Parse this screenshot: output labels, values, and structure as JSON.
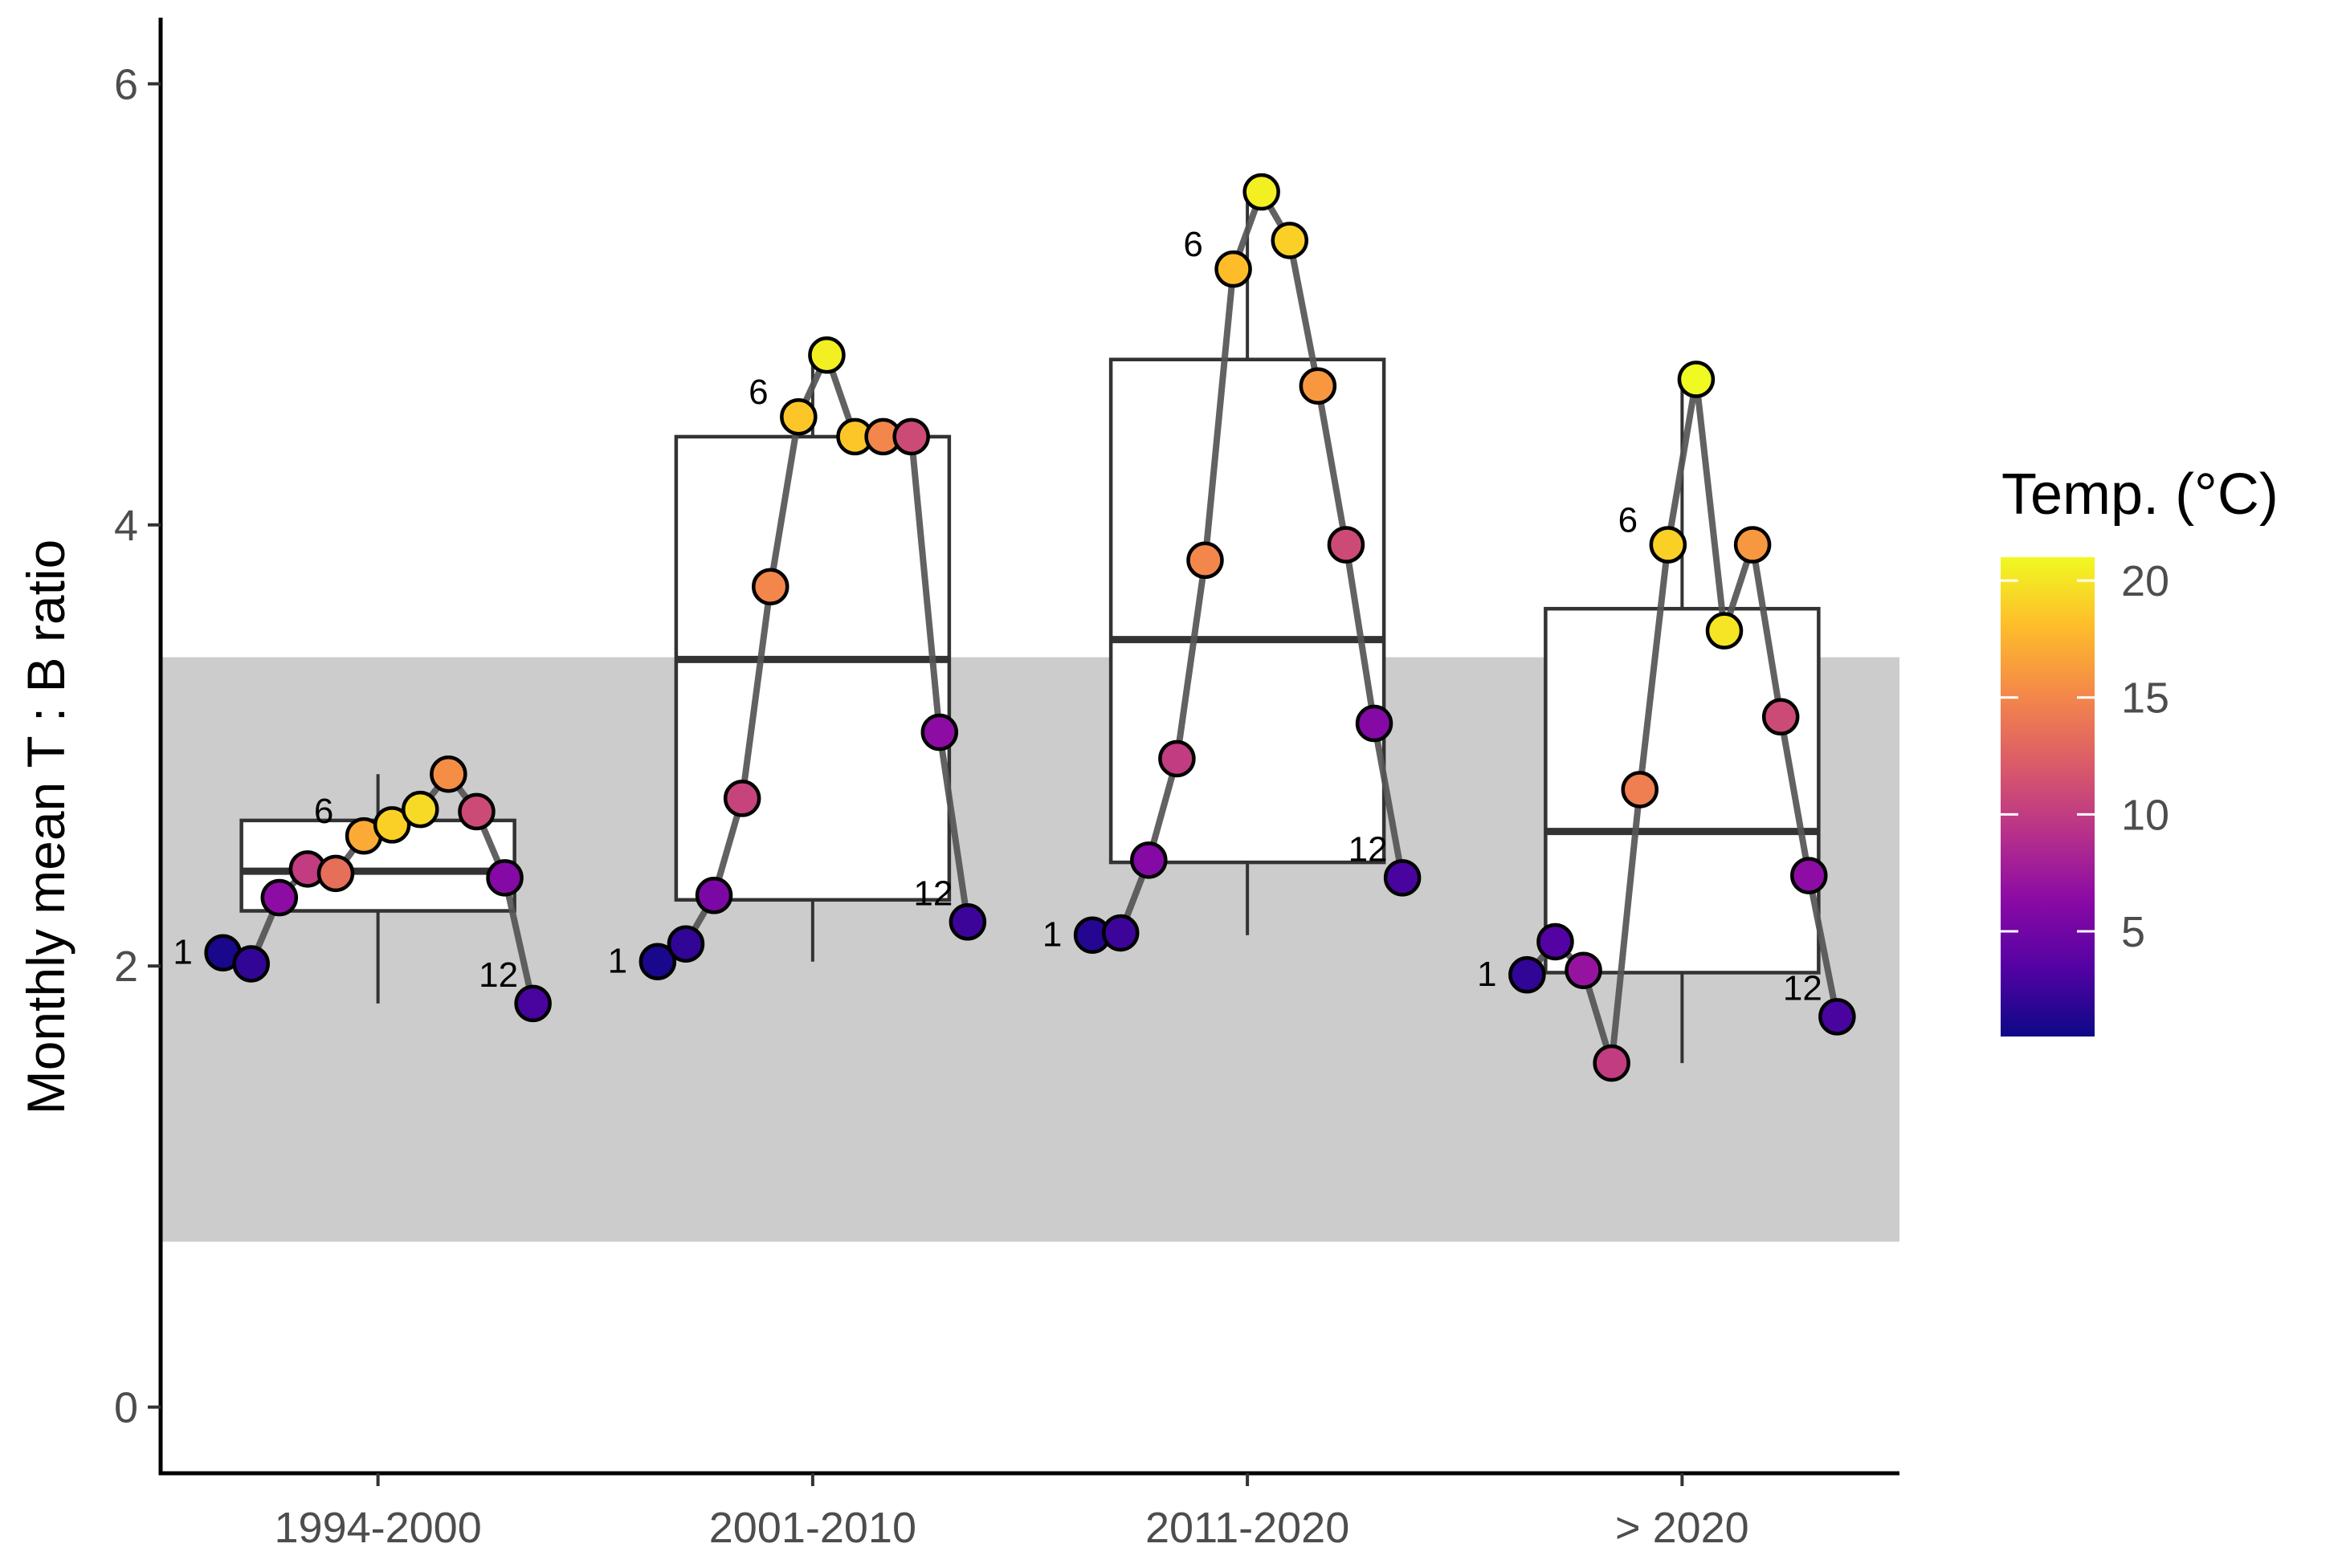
{
  "chart_data": {
    "type": "boxplot-with-scatter",
    "ylabel": "Monthly mean T : B ratio",
    "ylim": [
      -0.3,
      6.3
    ],
    "yticks": [
      0,
      2,
      4,
      6
    ],
    "reference_band": {
      "ymin": 0.75,
      "ymax": 3.4,
      "color": "#cccccc"
    },
    "color_scale": {
      "title": "Temp. (°C)",
      "min": 0.5,
      "max": 21,
      "ticks": [
        5,
        10,
        15,
        20
      ],
      "palette": [
        "#0d0887",
        "#5302a3",
        "#8b0aa5",
        "#b83289",
        "#db5c68",
        "#f48849",
        "#febd2a",
        "#f0f921"
      ]
    },
    "month_label_values": [
      "1",
      "6",
      "12"
    ],
    "groups": [
      {
        "label": "1994-2000",
        "box": {
          "lower_whisker": 1.83,
          "q1": 2.25,
          "median": 2.43,
          "q3": 2.66,
          "upper_whisker": 2.87
        },
        "months": [
          {
            "month": 1,
            "value": 2.06,
            "temp": 1.0
          },
          {
            "month": 2,
            "value": 2.01,
            "temp": 2.0
          },
          {
            "month": 3,
            "value": 2.31,
            "temp": 6.5
          },
          {
            "month": 4,
            "value": 2.44,
            "temp": 10.0
          },
          {
            "month": 5,
            "value": 2.42,
            "temp": 13.5
          },
          {
            "month": 6,
            "value": 2.59,
            "temp": 17.0
          },
          {
            "month": 7,
            "value": 2.64,
            "temp": 19.0
          },
          {
            "month": 8,
            "value": 2.71,
            "temp": 19.5
          },
          {
            "month": 9,
            "value": 2.87,
            "temp": 15.5
          },
          {
            "month": 10,
            "value": 2.7,
            "temp": 11.0
          },
          {
            "month": 11,
            "value": 2.4,
            "temp": 6.0
          },
          {
            "month": 12,
            "value": 1.83,
            "temp": 3.0
          }
        ]
      },
      {
        "label": "2001-2010",
        "box": {
          "lower_whisker": 2.02,
          "q1": 2.3,
          "median": 3.39,
          "q3": 4.4,
          "upper_whisker": 4.77
        },
        "months": [
          {
            "month": 1,
            "value": 2.02,
            "temp": 1.0
          },
          {
            "month": 2,
            "value": 2.1,
            "temp": 2.0
          },
          {
            "month": 3,
            "value": 2.32,
            "temp": 5.5
          },
          {
            "month": 4,
            "value": 2.76,
            "temp": 10.5
          },
          {
            "month": 5,
            "value": 3.72,
            "temp": 15.0
          },
          {
            "month": 6,
            "value": 4.49,
            "temp": 18.5
          },
          {
            "month": 7,
            "value": 4.77,
            "temp": 20.5
          },
          {
            "month": 8,
            "value": 4.4,
            "temp": 18.5
          },
          {
            "month": 9,
            "value": 4.4,
            "temp": 15.0
          },
          {
            "month": 10,
            "value": 4.4,
            "temp": 11.0
          },
          {
            "month": 11,
            "value": 3.06,
            "temp": 6.5
          },
          {
            "month": 12,
            "value": 2.2,
            "temp": 2.5
          }
        ]
      },
      {
        "label": "2011-2020",
        "box": {
          "lower_whisker": 2.14,
          "q1": 2.47,
          "median": 3.48,
          "q3": 4.75,
          "upper_whisker": 5.51
        },
        "months": [
          {
            "month": 1,
            "value": 2.14,
            "temp": 1.5
          },
          {
            "month": 2,
            "value": 2.15,
            "temp": 2.5
          },
          {
            "month": 3,
            "value": 2.48,
            "temp": 6.0
          },
          {
            "month": 4,
            "value": 2.94,
            "temp": 10.0
          },
          {
            "month": 5,
            "value": 3.84,
            "temp": 15.0
          },
          {
            "month": 6,
            "value": 5.16,
            "temp": 18.0
          },
          {
            "month": 7,
            "value": 5.51,
            "temp": 20.5
          },
          {
            "month": 8,
            "value": 5.29,
            "temp": 19.0
          },
          {
            "month": 9,
            "value": 4.63,
            "temp": 16.0
          },
          {
            "month": 10,
            "value": 3.91,
            "temp": 11.0
          },
          {
            "month": 11,
            "value": 3.1,
            "temp": 6.0
          },
          {
            "month": 12,
            "value": 2.4,
            "temp": 3.0
          }
        ]
      },
      {
        "label": "> 2020",
        "box": {
          "lower_whisker": 1.56,
          "q1": 1.97,
          "median": 2.61,
          "q3": 3.62,
          "upper_whisker": 4.66
        },
        "months": [
          {
            "month": 1,
            "value": 1.96,
            "temp": 2.0
          },
          {
            "month": 2,
            "value": 2.11,
            "temp": 3.5
          },
          {
            "month": 3,
            "value": 1.98,
            "temp": 7.0
          },
          {
            "month": 4,
            "value": 1.56,
            "temp": 10.0
          },
          {
            "month": 5,
            "value": 2.8,
            "temp": 14.5
          },
          {
            "month": 6,
            "value": 3.91,
            "temp": 19.0
          },
          {
            "month": 7,
            "value": 4.66,
            "temp": 21.0
          },
          {
            "month": 8,
            "value": 3.52,
            "temp": 20.0
          },
          {
            "month": 9,
            "value": 3.91,
            "temp": 16.0
          },
          {
            "month": 10,
            "value": 3.13,
            "temp": 11.0
          },
          {
            "month": 11,
            "value": 2.41,
            "temp": 6.5
          },
          {
            "month": 12,
            "value": 1.77,
            "temp": 3.0
          }
        ]
      }
    ]
  }
}
